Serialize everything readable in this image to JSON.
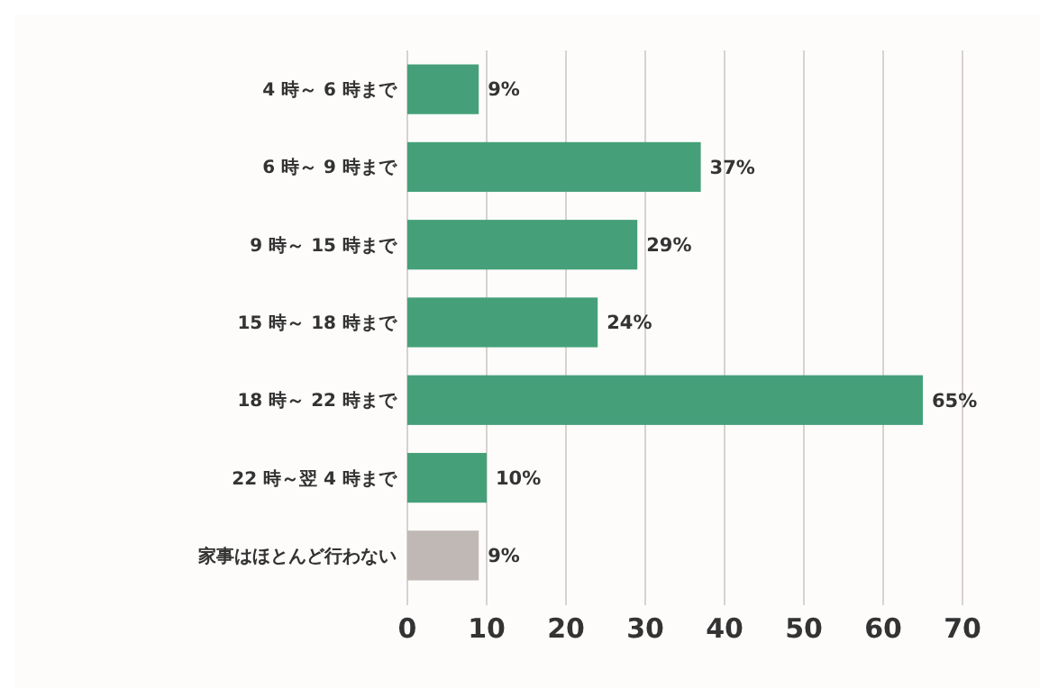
{
  "chart_data": {
    "type": "bar",
    "orientation": "horizontal",
    "categories": [
      "4 時～ 6 時まで",
      "6 時～ 9 時まで",
      "9 時～ 15 時まで",
      "15 時～ 18 時まで",
      "18 時～ 22 時まで",
      "22 時～翌 4 時まで",
      "家事はほとんど行わない"
    ],
    "values": [
      9,
      37,
      29,
      24,
      65,
      10,
      9
    ],
    "colors": [
      "#45a07a",
      "#45a07a",
      "#45a07a",
      "#45a07a",
      "#45a07a",
      "#45a07a",
      "#c0b8b4"
    ],
    "value_labels": [
      "9%",
      "37%",
      "29%",
      "24%",
      "65%",
      "10%",
      "9%"
    ],
    "xlim": [
      0,
      70
    ],
    "xticks": [
      0,
      10,
      20,
      30,
      40,
      50,
      60,
      70
    ],
    "grid": "x"
  }
}
